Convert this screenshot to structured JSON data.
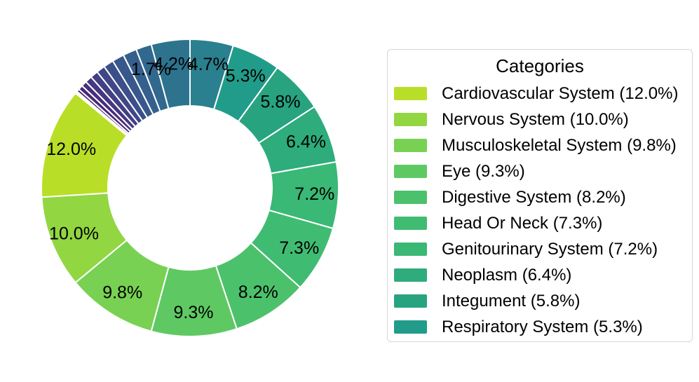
{
  "chart_data": {
    "type": "pie",
    "subtype": "donut",
    "direction": "clockwise",
    "start_angle_deg": 0,
    "hole_ratio": 0.552,
    "grid": false,
    "legend_position": "right",
    "legend_title": "Categories",
    "slices": [
      {
        "label": null,
        "value_pct": 4.7,
        "pct_label": "4.7%",
        "color": "#2a808e"
      },
      {
        "label": "Respiratory System",
        "value_pct": 5.3,
        "pct_label": "5.3%",
        "color": "#229c8a"
      },
      {
        "label": "Integument",
        "value_pct": 5.8,
        "pct_label": "5.8%",
        "color": "#27a380"
      },
      {
        "label": "Neoplasm",
        "value_pct": 6.4,
        "pct_label": "6.4%",
        "color": "#2eac7c"
      },
      {
        "label": "Genitourinary System",
        "value_pct": 7.2,
        "pct_label": "7.2%",
        "color": "#3ab875"
      },
      {
        "label": "Head Or Neck",
        "value_pct": 7.3,
        "pct_label": "7.3%",
        "color": "#40bc72"
      },
      {
        "label": "Digestive System",
        "value_pct": 8.2,
        "pct_label": "8.2%",
        "color": "#4cc16b"
      },
      {
        "label": "Eye",
        "value_pct": 9.3,
        "pct_label": "9.3%",
        "color": "#5ec962"
      },
      {
        "label": "Musculoskeletal System",
        "value_pct": 9.8,
        "pct_label": "9.8%",
        "color": "#78d152"
      },
      {
        "label": "Nervous System",
        "value_pct": 10.0,
        "pct_label": "10.0%",
        "color": "#92d642"
      },
      {
        "label": "Cardiovascular System",
        "value_pct": 12.0,
        "pct_label": "12.0%",
        "color": "#b9de28"
      },
      {
        "label": null,
        "value_pct": 0.05,
        "pct_label": null,
        "color": "#46085c"
      },
      {
        "label": null,
        "value_pct": 0.08,
        "pct_label": null,
        "color": "#470c5f"
      },
      {
        "label": null,
        "value_pct": 0.12,
        "pct_label": null,
        "color": "#471366"
      },
      {
        "label": null,
        "value_pct": 0.3,
        "pct_label": null,
        "color": "#481d6f"
      },
      {
        "label": null,
        "value_pct": 0.5,
        "pct_label": null,
        "color": "#482676"
      },
      {
        "label": null,
        "value_pct": 0.6,
        "pct_label": null,
        "color": "#472f7d"
      },
      {
        "label": null,
        "value_pct": 0.75,
        "pct_label": null,
        "color": "#453781"
      },
      {
        "label": null,
        "value_pct": 0.85,
        "pct_label": null,
        "color": "#423f85"
      },
      {
        "label": null,
        "value_pct": 0.95,
        "pct_label": null,
        "color": "#3f4788"
      },
      {
        "label": null,
        "value_pct": 1.1,
        "pct_label": null,
        "color": "#3b4f8a"
      },
      {
        "label": null,
        "value_pct": 1.3,
        "pct_label": null,
        "color": "#38588c"
      },
      {
        "label": null,
        "value_pct": 1.5,
        "pct_label": null,
        "color": "#35608e"
      },
      {
        "label": null,
        "value_pct": 1.7,
        "pct_label": "1.7%",
        "color": "#31688e"
      },
      {
        "label": null,
        "value_pct": 4.2,
        "pct_label": "4.2%",
        "color": "#2d738e"
      }
    ],
    "legend_entries": [
      {
        "label": "Cardiovascular System (12.0%)",
        "color": "#b9de28"
      },
      {
        "label": "Nervous System (10.0%)",
        "color": "#92d642"
      },
      {
        "label": "Musculoskeletal System (9.8%)",
        "color": "#78d152"
      },
      {
        "label": "Eye (9.3%)",
        "color": "#5ec962"
      },
      {
        "label": "Digestive System (8.2%)",
        "color": "#4cc16b"
      },
      {
        "label": "Head Or Neck (7.3%)",
        "color": "#40bc72"
      },
      {
        "label": "Genitourinary System (7.2%)",
        "color": "#3ab875"
      },
      {
        "label": "Neoplasm (6.4%)",
        "color": "#2eac7c"
      },
      {
        "label": "Integument (5.8%)",
        "color": "#27a380"
      },
      {
        "label": "Respiratory System (5.3%)",
        "color": "#229c8a"
      }
    ]
  }
}
